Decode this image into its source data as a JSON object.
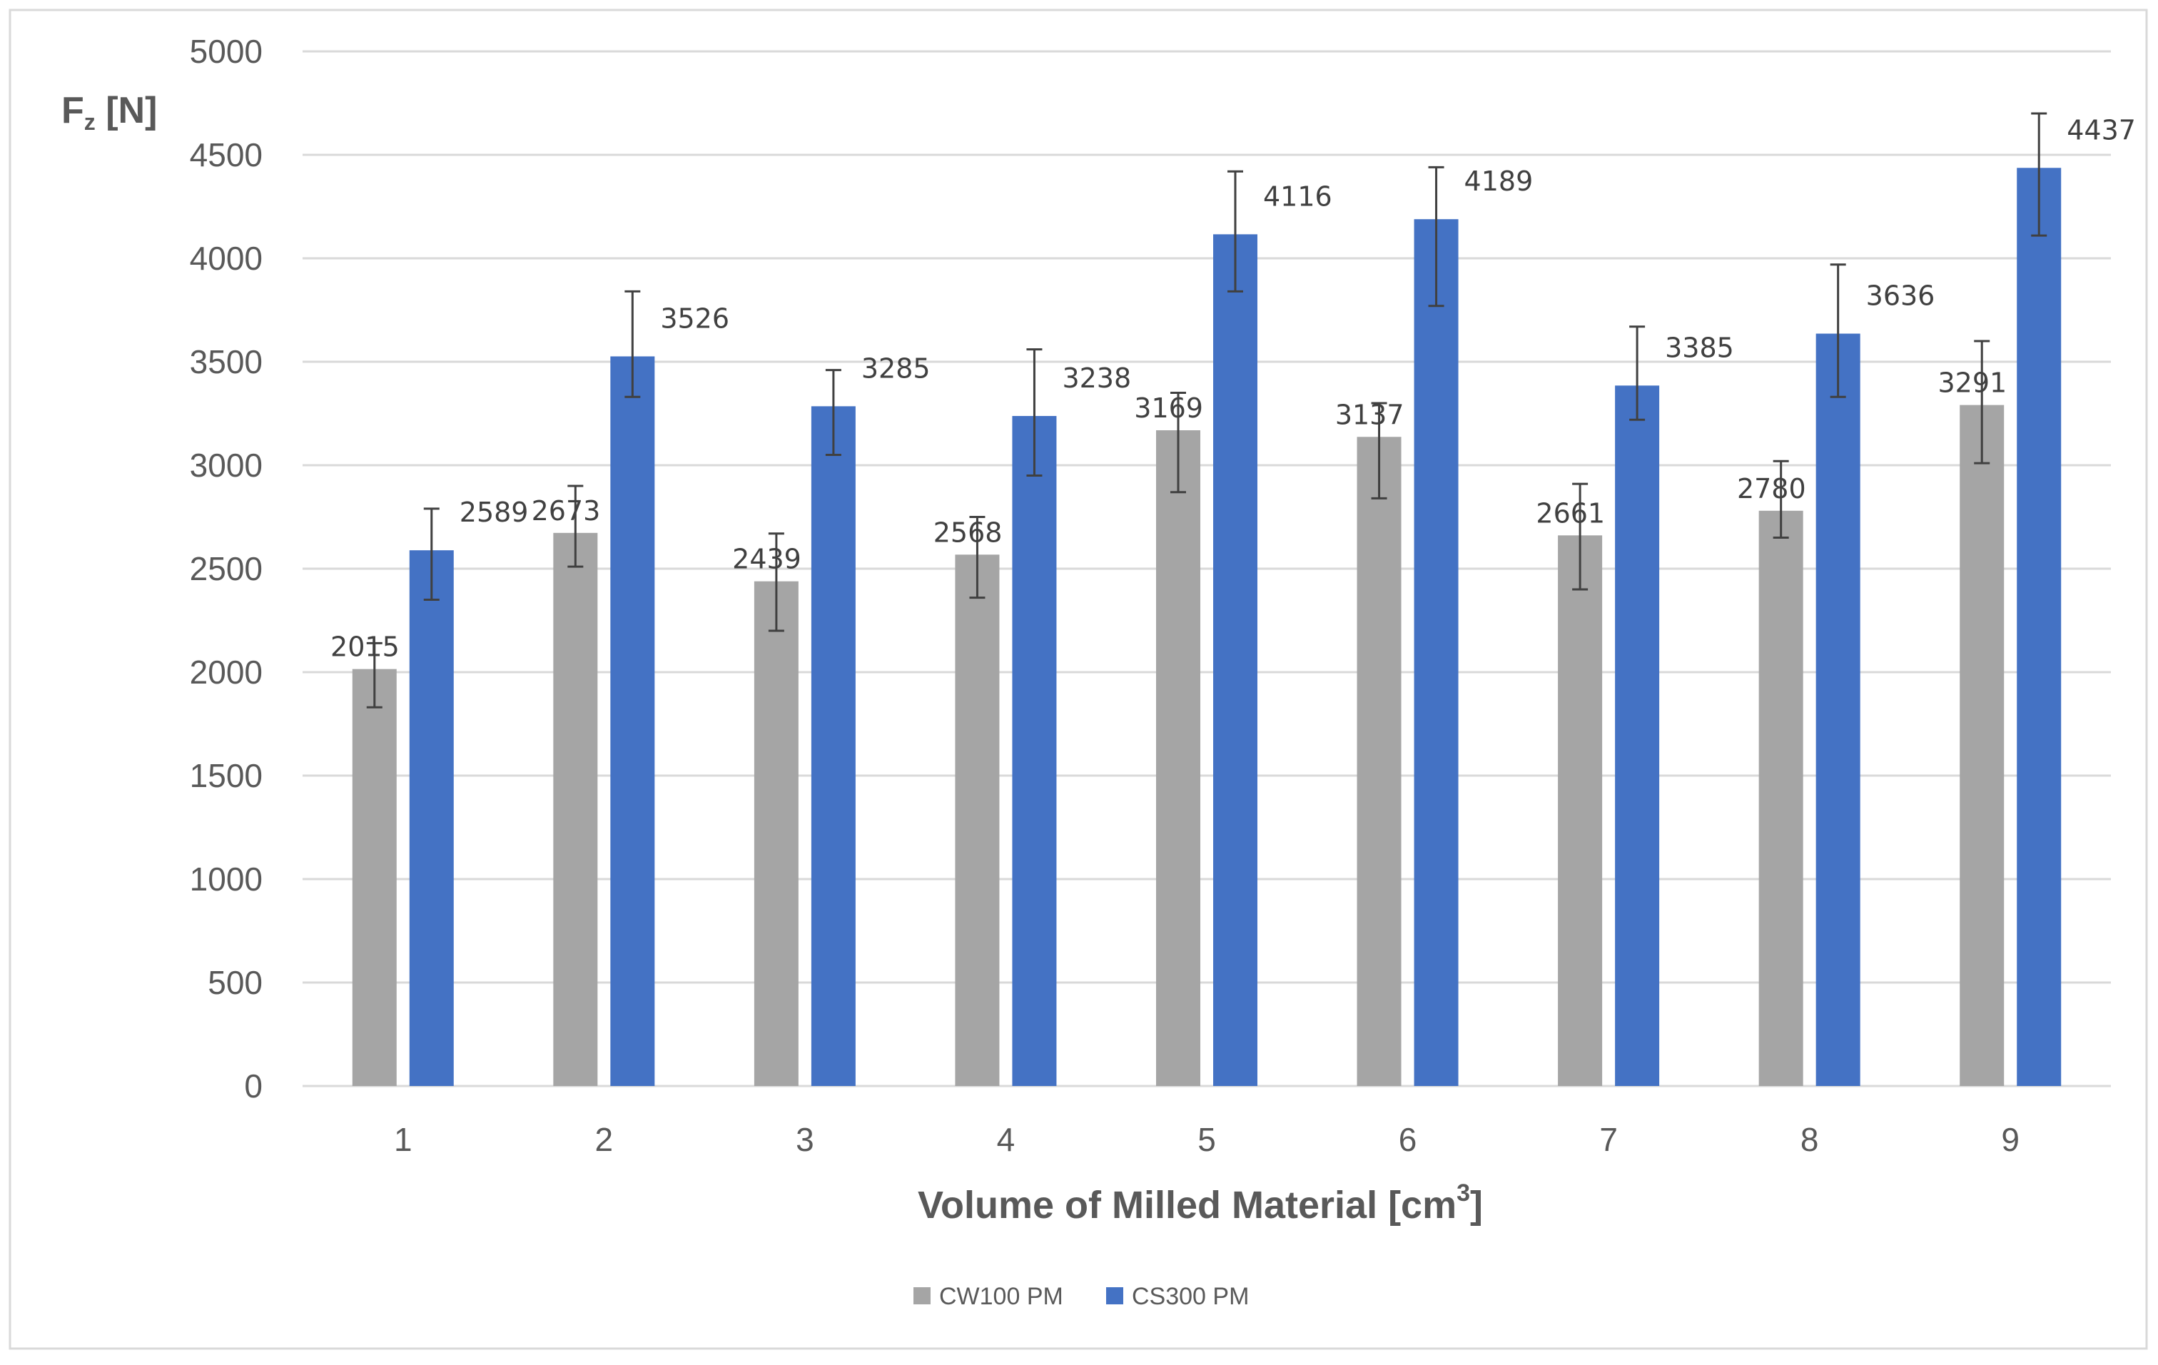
{
  "chart_data": {
    "type": "bar",
    "title": "",
    "xlabel": "Volume of Milled Material [cm",
    "xlabel_sup": "3",
    "xlabel_tail": "]",
    "ylabel": "F",
    "ylabel_sub": "z",
    "ylabel_tail": " [N]",
    "categories": [
      "1",
      "2",
      "3",
      "4",
      "5",
      "6",
      "7",
      "8",
      "9"
    ],
    "ylim": [
      0,
      5000
    ],
    "yticks": [
      0,
      500,
      1000,
      1500,
      2000,
      2500,
      3000,
      3500,
      4000,
      4500,
      5000
    ],
    "grid": true,
    "legend_position": "bottom-center",
    "series": [
      {
        "name": "CW100 PM",
        "color": "#a5a5a5",
        "values": [
          2015,
          2673,
          2439,
          2568,
          3169,
          3137,
          2661,
          2780,
          3291
        ],
        "error_low": [
          1830,
          2510,
          2200,
          2360,
          2870,
          2840,
          2400,
          2650,
          3010
        ],
        "error_high": [
          2140,
          2900,
          2670,
          2750,
          3350,
          3300,
          2910,
          3020,
          3600
        ]
      },
      {
        "name": "CS300 PM",
        "color": "#4472c4",
        "values": [
          2589,
          3526,
          3285,
          3238,
          4116,
          4189,
          3385,
          3636,
          4437
        ],
        "error_low": [
          2350,
          3330,
          3050,
          2950,
          3840,
          3770,
          3220,
          3330,
          4110
        ],
        "error_high": [
          2790,
          3840,
          3460,
          3560,
          4420,
          4440,
          3670,
          3970,
          4700
        ]
      }
    ]
  }
}
